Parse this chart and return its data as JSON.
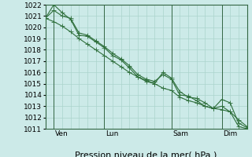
{
  "xlabel": "Pression niveau de la mer( hPa )",
  "ylim": [
    1011,
    1022
  ],
  "yticks": [
    1011,
    1012,
    1013,
    1014,
    1015,
    1016,
    1017,
    1018,
    1019,
    1020,
    1021,
    1022
  ],
  "background_color": "#cceae8",
  "grid_color": "#aad4cc",
  "line_color": "#2d6e3a",
  "day_labels": [
    "Ven",
    "Lun",
    "Sam",
    "Dim"
  ],
  "day_positions": [
    1,
    7,
    15,
    21
  ],
  "xlim": [
    0,
    24
  ],
  "line1_y": [
    1020.8,
    1020.5,
    1020.1,
    1019.6,
    1019.0,
    1018.5,
    1018.0,
    1017.5,
    1017.0,
    1016.5,
    1016.0,
    1015.6,
    1015.3,
    1015.0,
    1014.6,
    1014.4,
    1013.8,
    1013.5,
    1013.3,
    1013.0,
    1012.8,
    1012.7,
    1012.5,
    1011.8,
    1011.2
  ],
  "line2_y": [
    1020.8,
    1021.5,
    1021.0,
    1020.8,
    1019.5,
    1019.3,
    1018.8,
    1018.3,
    1017.7,
    1017.2,
    1016.6,
    1015.8,
    1015.4,
    1015.2,
    1015.8,
    1015.4,
    1014.0,
    1013.9,
    1013.5,
    1013.0,
    1012.8,
    1013.6,
    1013.3,
    1011.5,
    1011.1
  ],
  "line3_y": [
    1020.8,
    1022.0,
    1021.3,
    1020.7,
    1019.3,
    1019.2,
    1018.7,
    1018.2,
    1017.5,
    1017.1,
    1016.4,
    1015.6,
    1015.2,
    1015.0,
    1016.0,
    1015.5,
    1014.3,
    1013.8,
    1013.7,
    1013.3,
    1012.8,
    1013.0,
    1012.5,
    1011.2,
    1011.0
  ],
  "fontsize_xlabel": 8,
  "fontsize_ytick": 6.5,
  "fontsize_day": 6.5,
  "linewidth": 0.8,
  "markersize": 2.2,
  "vline_color": "#336644",
  "vline_lw": 0.7,
  "spine_color": "#336644"
}
